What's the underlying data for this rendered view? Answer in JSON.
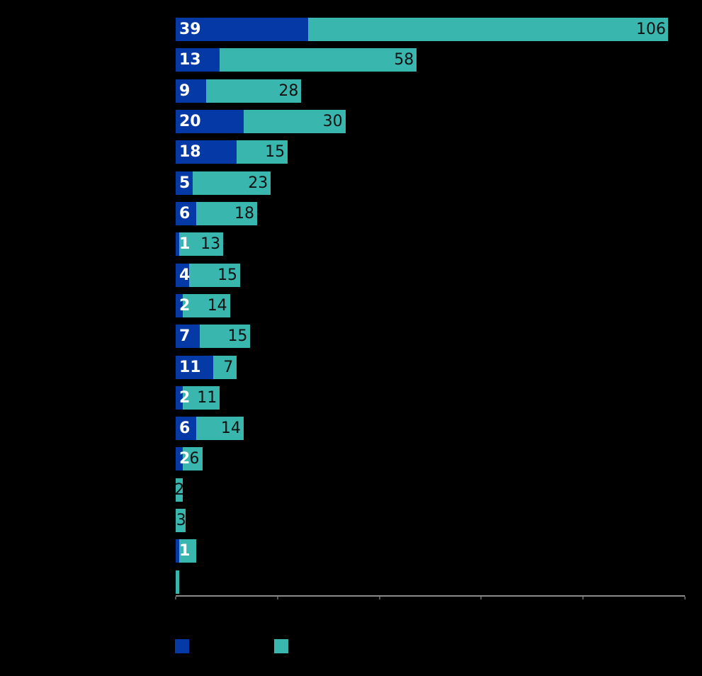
{
  "chart_data": {
    "type": "bar",
    "variant": "horizontal-stacked",
    "title": "",
    "xlabel": "",
    "ylabel": "",
    "x_axis": {
      "min": 0,
      "max": 150,
      "tick_interval": 30,
      "tick_values": [
        0,
        30,
        60,
        90,
        120,
        150
      ],
      "tick_labels_visible": false
    },
    "category_labels_visible": false,
    "series": [
      {
        "name": "series-1-blue",
        "color": "#0539a6",
        "label_color": "#ffffff",
        "legend_label": ""
      },
      {
        "name": "series-2-teal",
        "color": "#39b6ad",
        "label_color": "#111111",
        "legend_label": ""
      }
    ],
    "rows": [
      {
        "blue": 39,
        "blue_label": "39",
        "teal": 106,
        "teal_label": "106"
      },
      {
        "blue": 13,
        "blue_label": "13",
        "teal": 58,
        "teal_label": "58"
      },
      {
        "blue": 9,
        "blue_label": "9",
        "teal": 28,
        "teal_label": "28"
      },
      {
        "blue": 20,
        "blue_label": "20",
        "teal": 30,
        "teal_label": "30"
      },
      {
        "blue": 18,
        "blue_label": "18",
        "teal": 15,
        "teal_label": "15"
      },
      {
        "blue": 5,
        "blue_label": "5",
        "teal": 23,
        "teal_label": "23"
      },
      {
        "blue": 6,
        "blue_label": "6",
        "teal": 18,
        "teal_label": "18"
      },
      {
        "blue": 1,
        "blue_label": "1",
        "teal": 13,
        "teal_label": "13"
      },
      {
        "blue": 4,
        "blue_label": "4",
        "teal": 15,
        "teal_label": "15"
      },
      {
        "blue": 2,
        "blue_label": "2",
        "teal": 14,
        "teal_label": "14"
      },
      {
        "blue": 7,
        "blue_label": "7",
        "teal": 15,
        "teal_label": "15"
      },
      {
        "blue": 11,
        "blue_label": "11",
        "teal": 7,
        "teal_label": "7"
      },
      {
        "blue": 2,
        "blue_label": "2",
        "teal": 11,
        "teal_label": "11"
      },
      {
        "blue": 6,
        "blue_label": "6",
        "teal": 14,
        "teal_label": "14"
      },
      {
        "blue": 2,
        "blue_label": "2",
        "teal": 6,
        "teal_label": "6"
      },
      {
        "blue": 0,
        "blue_label": "",
        "teal": 2,
        "teal_label": "2"
      },
      {
        "blue": 0,
        "blue_label": "",
        "teal": 3,
        "teal_label": "3"
      },
      {
        "blue": 1,
        "blue_label": "1",
        "teal": 5,
        "teal_label": ""
      },
      {
        "blue": 0,
        "blue_label": "",
        "teal": 1,
        "teal_label": ""
      }
    ],
    "legend_position": "bottom-left"
  },
  "style": {
    "background": "#000000",
    "blue": "#0539a6",
    "teal": "#39b6ad",
    "label_light": "#ffffff",
    "label_dark": "#111111",
    "axis_line_color": "#8a8a8a",
    "tick_color": "#555555"
  }
}
